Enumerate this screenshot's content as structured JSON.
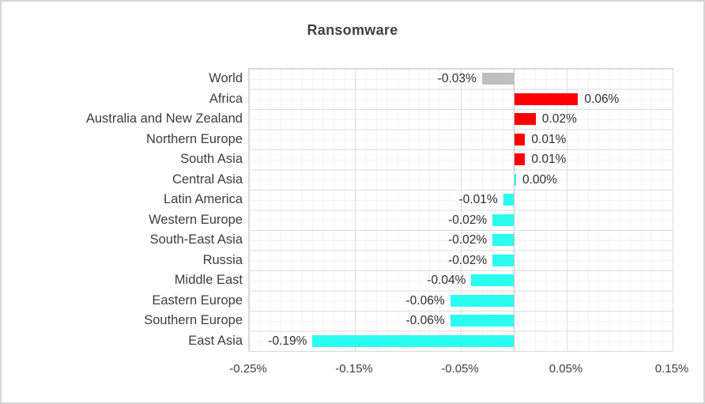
{
  "frame": {
    "background": "#ffffff",
    "border_color": "#d6d6d6"
  },
  "chart_data": {
    "type": "bar",
    "orientation": "horizontal",
    "title": "Ransomware",
    "title_color": "#404040",
    "categories": [
      "World",
      "Africa",
      "Australia and New Zealand",
      "Northern Europe",
      "South Asia",
      "Central Asia",
      "Latin America",
      "Western Europe",
      "South-East Asia",
      "Russia",
      "Middle East",
      "Eastern Europe",
      "Southern Europe",
      "East Asia"
    ],
    "values": [
      -0.03,
      0.06,
      0.02,
      0.01,
      0.01,
      0.0,
      -0.01,
      -0.02,
      -0.02,
      -0.02,
      -0.04,
      -0.06,
      -0.06,
      -0.19
    ],
    "value_labels": [
      "-0.03%",
      "0.06%",
      "0.02%",
      "0.01%",
      "0.01%",
      "0.00%",
      "-0.01%",
      "-0.02%",
      "-0.02%",
      "-0.02%",
      "-0.04%",
      "-0.06%",
      "-0.06%",
      "-0.19%"
    ],
    "bar_colors": [
      "#bfbfbf",
      "#ff0000",
      "#ff0000",
      "#ff0000",
      "#ff0000",
      "#2bfcf2",
      "#2bfcf2",
      "#2bfcf2",
      "#2bfcf2",
      "#2bfcf2",
      "#2bfcf2",
      "#2bfcf2",
      "#2bfcf2",
      "#2bfcf2"
    ],
    "series_colors": {
      "increase": "#ff0000",
      "decrease": "#2bfcf2",
      "world": "#bfbfbf"
    },
    "xlabel": "",
    "ylabel": "",
    "xlim": [
      -0.25,
      0.15
    ],
    "xtick_values": [
      -0.25,
      -0.15,
      -0.05,
      0.05,
      0.15
    ],
    "xtick_labels": [
      "-0.25%",
      "-0.15%",
      "-0.05%",
      "0.05%",
      "0.15%"
    ],
    "grid": {
      "minor_step": 0.01,
      "major_step": 0.1,
      "minor_color": "#f4f4f4",
      "major_color": "#dcdcdc",
      "zero_line_color": "#c4c4c4"
    },
    "legend": "none"
  }
}
